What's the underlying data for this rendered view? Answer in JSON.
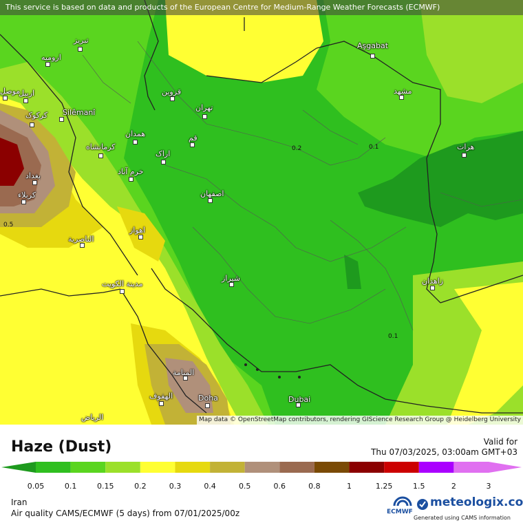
{
  "banner": "This service is based on data and products of the European Centre for Medium-Range Weather Forecasts (ECMWF)",
  "attribution": "Map data © OpenStreetMap contributors, rendering GIScience Research Group @ Heidelberg University",
  "title": "Haze (Dust)",
  "valid_label": "Valid for",
  "valid_time": "Thu 07/03/2025, 03:00am GMT+03",
  "region": "Iran",
  "model_line": "Air quality CAMS/ECMWF (5 days)  from  07/01/2025/00z",
  "logo": "meteologix.com",
  "logo_sub": "Generated using CAMS information",
  "ecmwf_label": "ECMWF",
  "colors": {
    "bins": [
      "#1e9a1e",
      "#2fbf1f",
      "#5ad51f",
      "#9be02a",
      "#ffff33",
      "#e6d90f",
      "#c2b236",
      "#b0907a",
      "#9a6a50",
      "#7a4a05",
      "#8b0000",
      "#cc0000",
      "#aa00ff",
      "#e070f0"
    ]
  },
  "legend_ticks": [
    "0.05",
    "0.1",
    "0.15",
    "0.2",
    "0.3",
    "0.4",
    "0.5",
    "0.6",
    "0.8",
    "1",
    "1.25",
    "1.5",
    "2",
    "3"
  ],
  "contour_labels": [
    "0.2",
    "0.1",
    "0.1",
    "0.5"
  ],
  "cities": [
    {
      "name": "Aşgabat"
    },
    {
      "name": "مشهد"
    },
    {
      "name": "هرات"
    },
    {
      "name": "تبریز"
    },
    {
      "name": "ارومیه"
    },
    {
      "name": "اربیل"
    },
    {
      "name": "موصل"
    },
    {
      "name": "کرکوک"
    },
    {
      "name": "Silêmanî"
    },
    {
      "name": "قزوین"
    },
    {
      "name": "تهران"
    },
    {
      "name": "قم"
    },
    {
      "name": "همدان"
    },
    {
      "name": "کرمانشاه"
    },
    {
      "name": "اراک"
    },
    {
      "name": "خرم آباد"
    },
    {
      "name": "بغداد"
    },
    {
      "name": "کربلاء"
    },
    {
      "name": "اصفهان"
    },
    {
      "name": "اهواز"
    },
    {
      "name": "الناصرية"
    },
    {
      "name": "مدينة الكويت"
    },
    {
      "name": "شیراز"
    },
    {
      "name": "زاهدان"
    },
    {
      "name": "المنامة"
    },
    {
      "name": "الهفوف"
    },
    {
      "name": "Doha"
    },
    {
      "name": "Dubai"
    },
    {
      "name": "الرياض"
    }
  ]
}
